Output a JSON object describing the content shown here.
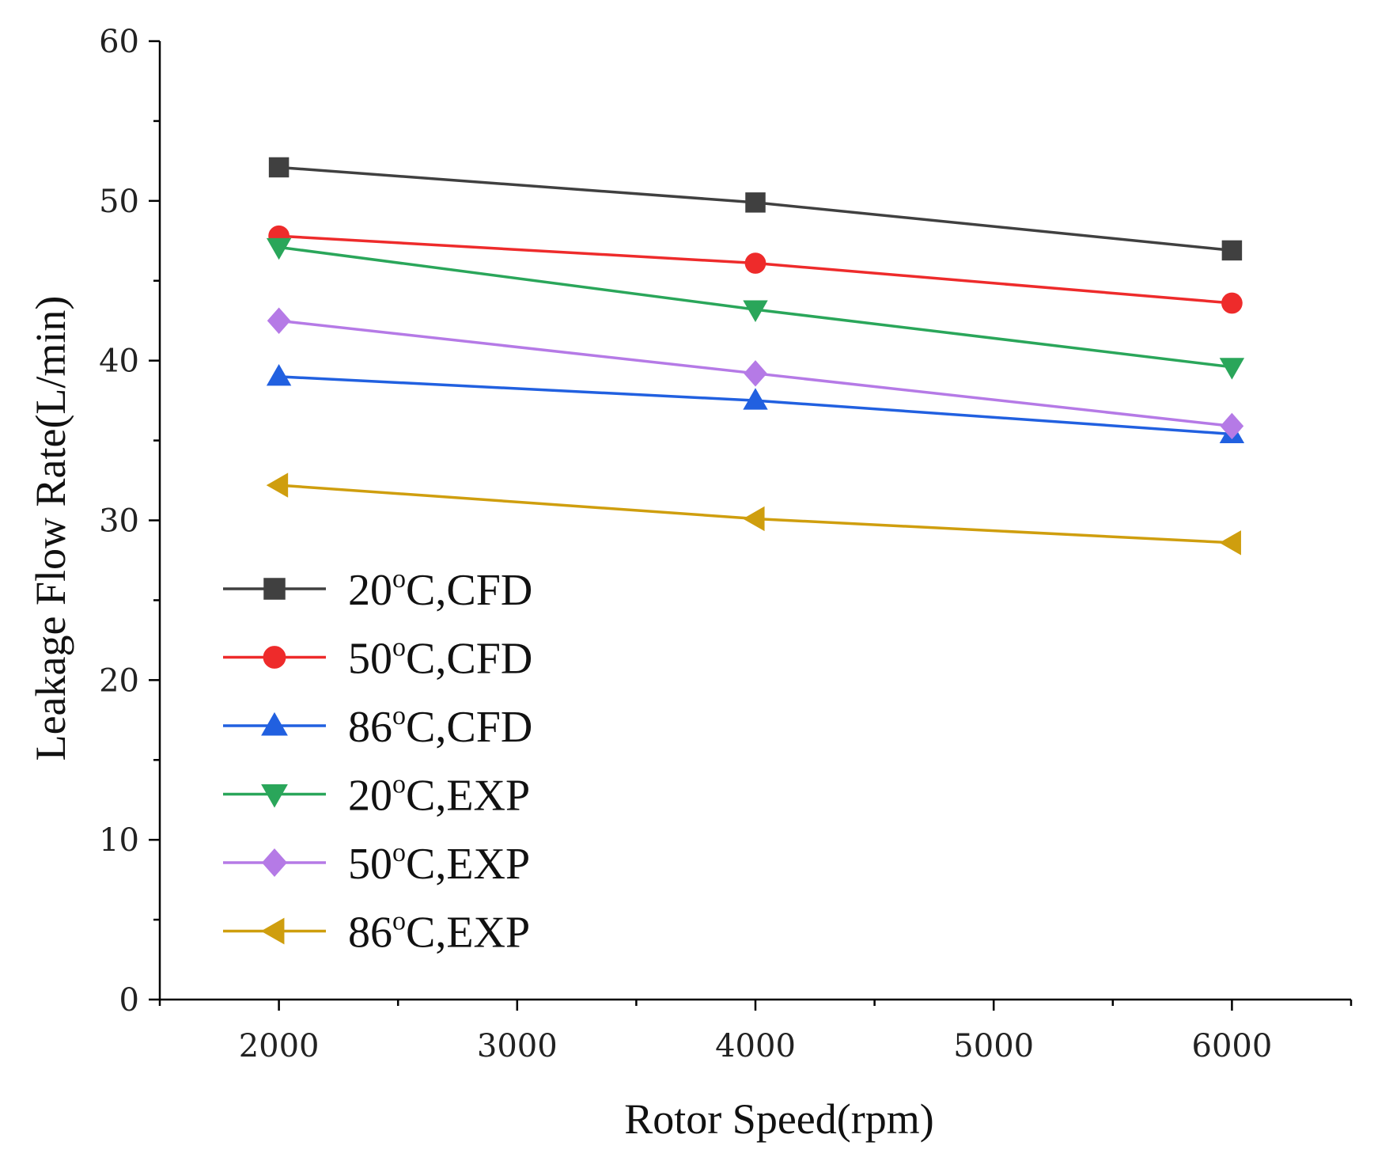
{
  "chart_data": {
    "type": "line",
    "title": "",
    "xlabel": "Rotor Speed(rpm)",
    "ylabel": "Leakage Flow Rate(L/min)",
    "x": [
      2000,
      4000,
      6000
    ],
    "xlim": [
      1500,
      6500
    ],
    "ylim": [
      0,
      60
    ],
    "xticks": [
      2000,
      3000,
      4000,
      5000,
      6000
    ],
    "yticks": [
      0,
      10,
      20,
      30,
      40,
      50,
      60
    ],
    "grid": false,
    "legend_position": "bottom-left",
    "series": [
      {
        "name_prefix": "20",
        "name_sup": "o",
        "name_suffix": "C,CFD",
        "marker": "square",
        "color": "#404040",
        "values": [
          52.1,
          49.9,
          46.9
        ]
      },
      {
        "name_prefix": "50",
        "name_sup": "o",
        "name_suffix": "C,CFD",
        "marker": "circle",
        "color": "#ee2b2b",
        "values": [
          47.8,
          46.1,
          43.6
        ]
      },
      {
        "name_prefix": "86",
        "name_sup": "o",
        "name_suffix": "C,CFD",
        "marker": "triangle-up",
        "color": "#2160e0",
        "values": [
          39.0,
          37.5,
          35.4
        ]
      },
      {
        "name_prefix": "20",
        "name_sup": "o",
        "name_suffix": "C,EXP",
        "marker": "triangle-down",
        "color": "#2aa65a",
        "values": [
          47.1,
          43.2,
          39.6
        ]
      },
      {
        "name_prefix": "50",
        "name_sup": "o",
        "name_suffix": "C,EXP",
        "marker": "diamond",
        "color": "#b57ae6",
        "values": [
          42.5,
          39.2,
          35.9
        ]
      },
      {
        "name_prefix": "86",
        "name_sup": "o",
        "name_suffix": "C,EXP",
        "marker": "triangle-left",
        "color": "#cf9e0e",
        "values": [
          32.2,
          30.1,
          28.6
        ]
      }
    ]
  }
}
